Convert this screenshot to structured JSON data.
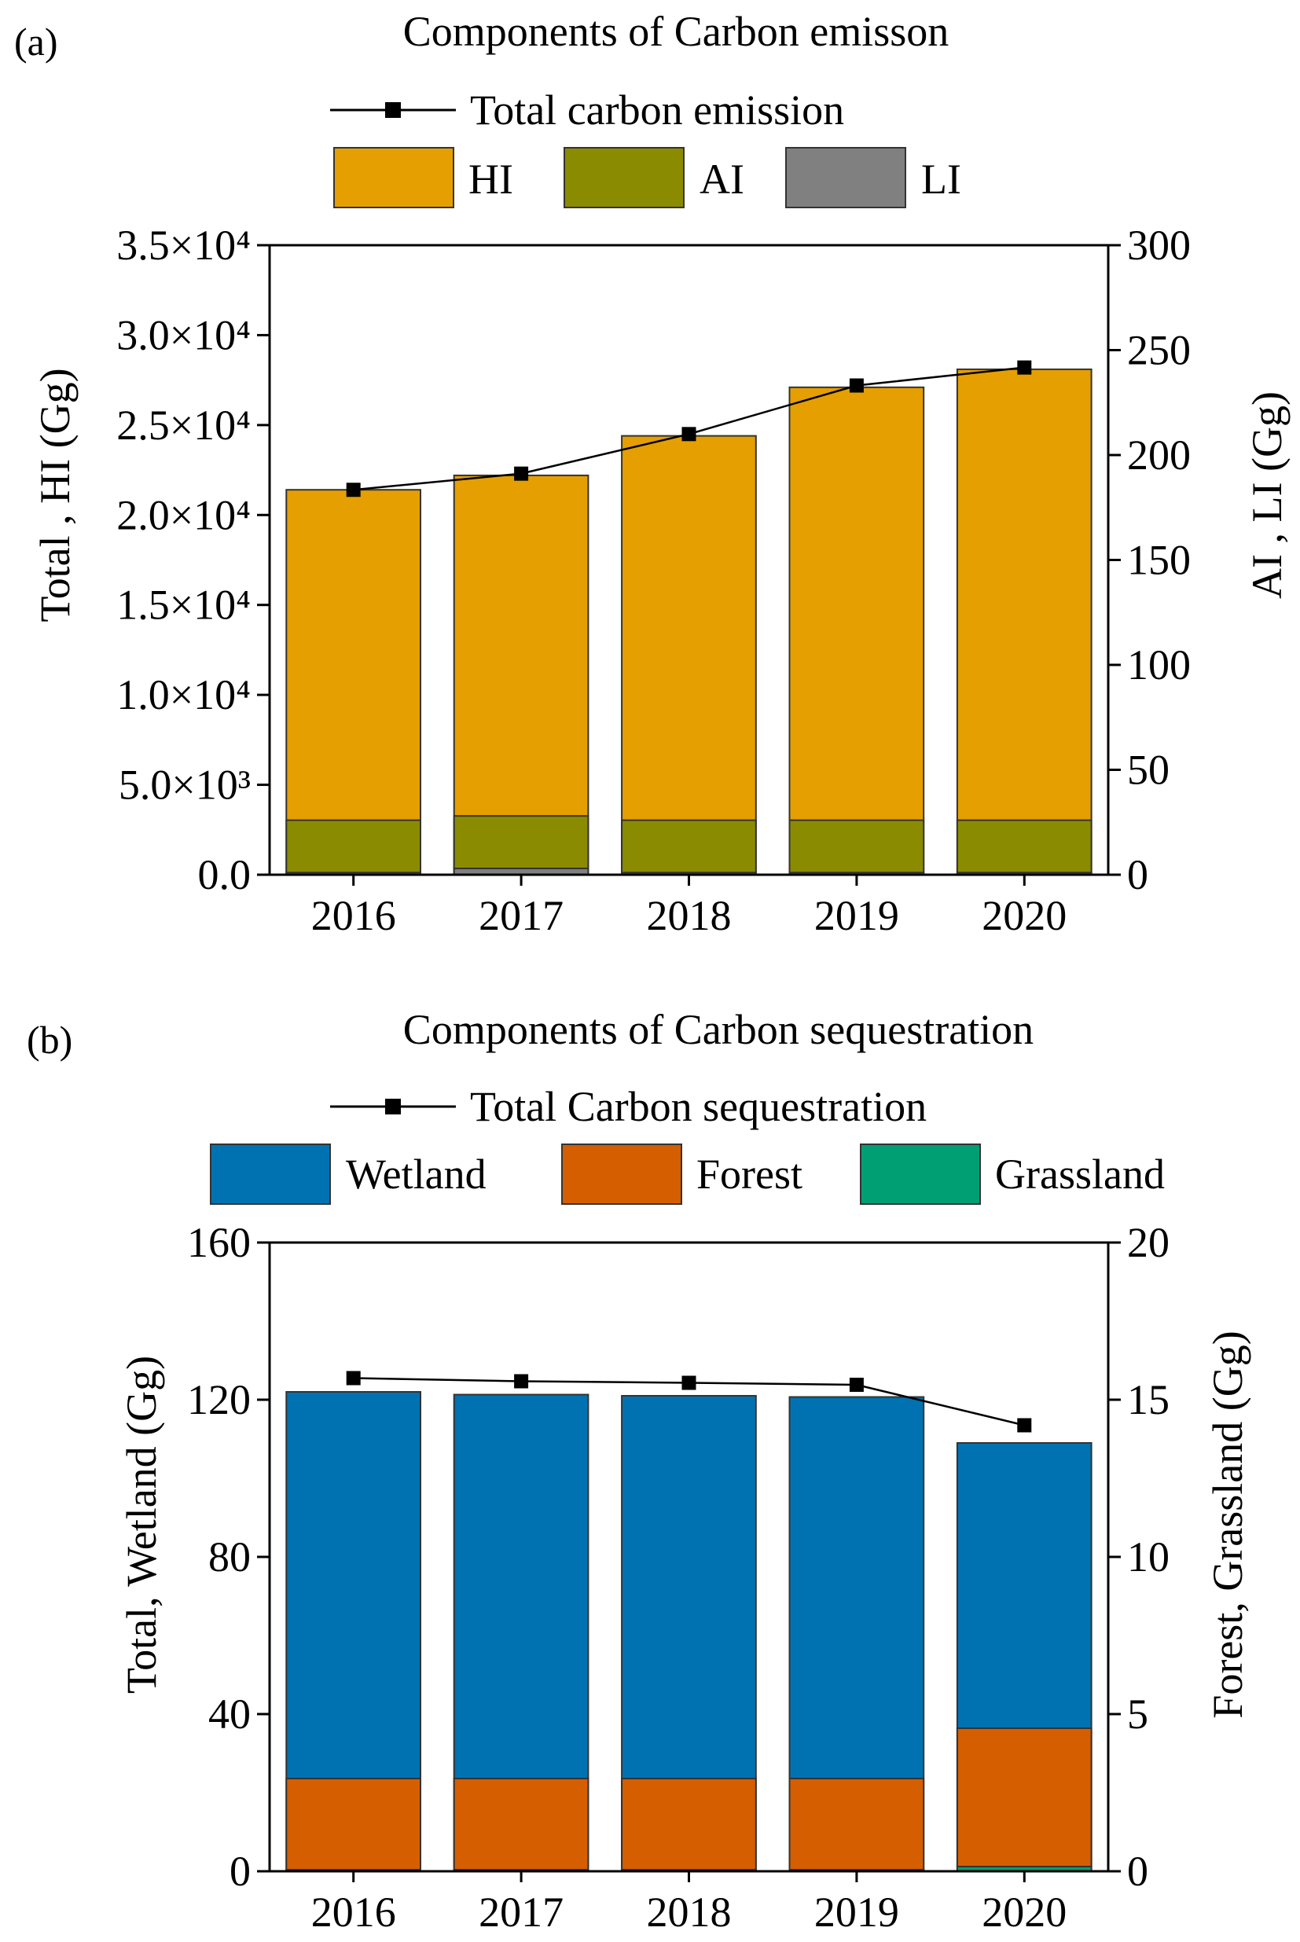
{
  "chart_data": [
    {
      "panel_label": "(a)",
      "type": "bar",
      "stacked": true,
      "title": "Components of Carbon emisson",
      "categories": [
        "2016",
        "2017",
        "2018",
        "2019",
        "2020"
      ],
      "xlabel": "",
      "ylabel": "Total , HI (Gg)",
      "ylabel_right": "AI , LI (Gg)",
      "ylim": [
        0,
        35000
      ],
      "ylim_right": [
        0,
        300
      ],
      "yticks": [
        "0.0",
        "5.0×10³",
        "1.0×10⁴",
        "1.5×10⁴",
        "2.0×10⁴",
        "2.5×10⁴",
        "3.0×10⁴",
        "3.5×10⁴"
      ],
      "yticks_right": [
        "0",
        "50",
        "100",
        "150",
        "200",
        "250",
        "300"
      ],
      "series": [
        {
          "name": "HI",
          "axis": "left",
          "color": "#E69F00",
          "kind": "bar",
          "values": [
            21400,
            22200,
            24400,
            27100,
            28100
          ]
        },
        {
          "name": "AI",
          "axis": "right",
          "color": "#8B8B00",
          "kind": "bar",
          "values": [
            25,
            25,
            25,
            25,
            25
          ]
        },
        {
          "name": "LI",
          "axis": "right",
          "color": "#808080",
          "kind": "bar",
          "values": [
            1,
            3,
            1,
            1,
            1
          ]
        },
        {
          "name": "Total carbon emission",
          "axis": "left",
          "color": "#000000",
          "kind": "line",
          "values": [
            21400,
            22300,
            24500,
            27200,
            28200
          ]
        }
      ],
      "legend_line": "Total carbon emission",
      "legend_items": [
        "HI",
        "AI",
        "LI"
      ]
    },
    {
      "panel_label": "(b)",
      "type": "bar",
      "stacked": true,
      "title": "Components of Carbon sequestration",
      "categories": [
        "2016",
        "2017",
        "2018",
        "2019",
        "2020"
      ],
      "xlabel": "",
      "ylabel": "Total, Wetland (Gg)",
      "ylabel_right": "Forest, Grassland (Gg)",
      "ylim": [
        0,
        160
      ],
      "ylim_right": [
        0,
        20
      ],
      "yticks": [
        "0",
        "40",
        "80",
        "120",
        "160"
      ],
      "yticks_right": [
        "0",
        "5",
        "10",
        "15",
        "20"
      ],
      "series": [
        {
          "name": "Wetland",
          "axis": "left",
          "color": "#0072B2",
          "kind": "bar",
          "values": [
            122,
            121.3,
            121,
            120.7,
            109
          ]
        },
        {
          "name": "Forest",
          "axis": "right",
          "color": "#D55E00",
          "kind": "bar",
          "values": [
            2.9,
            2.9,
            2.9,
            2.9,
            4.4
          ]
        },
        {
          "name": "Grassland",
          "axis": "right",
          "color": "#009E73",
          "kind": "bar",
          "values": [
            0.05,
            0.05,
            0.05,
            0.05,
            0.15
          ]
        },
        {
          "name": "Total Carbon sequestration",
          "axis": "left",
          "color": "#000000",
          "kind": "line",
          "values": [
            125.5,
            124.7,
            124.3,
            123.8,
            113.5
          ]
        }
      ],
      "legend_line": "Total Carbon sequestration",
      "legend_items": [
        "Wetland",
        "Forest",
        "Grassland"
      ]
    }
  ]
}
